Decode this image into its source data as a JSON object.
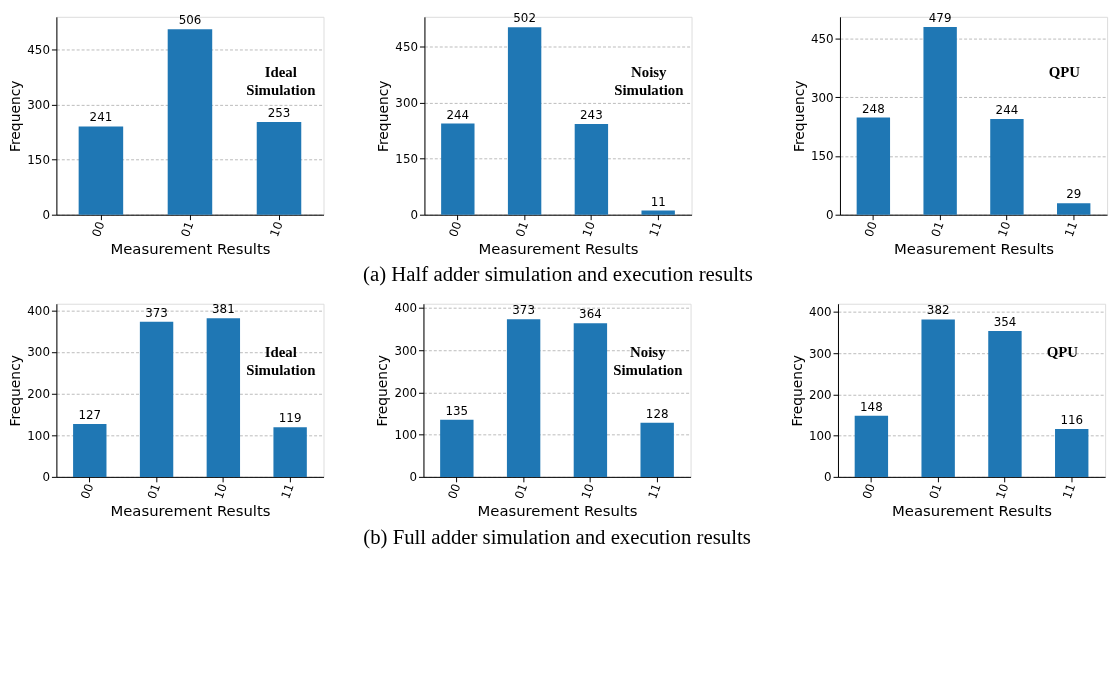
{
  "chart_data": [
    {
      "type": "bar",
      "categories": [
        "00",
        "01",
        "10"
      ],
      "values": [
        241,
        506,
        253
      ],
      "color": "#1f77b4",
      "ylim": [
        0,
        540
      ],
      "yticks": [
        0,
        150,
        300,
        450
      ],
      "grid": "y",
      "data_labels": true,
      "xlabel": "Measurement Results",
      "ylabel": "Frequency",
      "annotations": [
        "Ideal Simulation"
      ]
    },
    {
      "type": "bar",
      "categories": [
        "00",
        "01",
        "10",
        "11"
      ],
      "values": [
        244,
        502,
        243,
        11
      ],
      "color": "#1f77b4",
      "ylim": [
        0,
        530
      ],
      "yticks": [
        0,
        150,
        300,
        450
      ],
      "grid": "y",
      "data_labels": true,
      "xlabel": "Measurement Results",
      "ylabel": "Frequency",
      "annotations": [
        "Noisy Simulation"
      ],
      "title": "(a)  Half adder simulation and execution results"
    },
    {
      "type": "bar",
      "categories": [
        "00",
        "01",
        "10",
        "11"
      ],
      "values": [
        248,
        479,
        244,
        29
      ],
      "color": "#1f77b4",
      "ylim": [
        0,
        505
      ],
      "yticks": [
        0,
        150,
        300,
        450
      ],
      "grid": "y",
      "data_labels": true,
      "xlabel": "Measurement Results",
      "ylabel": "Frequency",
      "annotations": [
        "QPU"
      ]
    },
    {
      "type": "bar",
      "categories": [
        "00",
        "01",
        "10",
        "11"
      ],
      "values": [
        127,
        373,
        381,
        119
      ],
      "color": "#1f77b4",
      "ylim": [
        0,
        416
      ],
      "yticks": [
        0,
        100,
        200,
        300,
        400
      ],
      "grid": "y",
      "data_labels": true,
      "xlabel": "Measurement Results",
      "ylabel": "Frequency",
      "annotations": [
        "Ideal Simulation"
      ]
    },
    {
      "type": "bar",
      "categories": [
        "00",
        "01",
        "10",
        "11"
      ],
      "values": [
        135,
        373,
        364,
        128
      ],
      "color": "#1f77b4",
      "ylim": [
        0,
        410
      ],
      "yticks": [
        0,
        100,
        200,
        300,
        400
      ],
      "grid": "y",
      "data_labels": true,
      "xlabel": "Measurement Results",
      "ylabel": "Frequency",
      "annotations": [
        "Noisy Simulation"
      ],
      "title": "(b)  Full adder simulation and execution results"
    },
    {
      "type": "bar",
      "categories": [
        "00",
        "01",
        "10",
        "11"
      ],
      "values": [
        148,
        382,
        354,
        116
      ],
      "color": "#1f77b4",
      "ylim": [
        0,
        420
      ],
      "yticks": [
        0,
        100,
        200,
        300,
        400
      ],
      "grid": "y",
      "data_labels": true,
      "xlabel": "Measurement Results",
      "ylabel": "Frequency",
      "annotations": [
        "QPU"
      ]
    }
  ]
}
